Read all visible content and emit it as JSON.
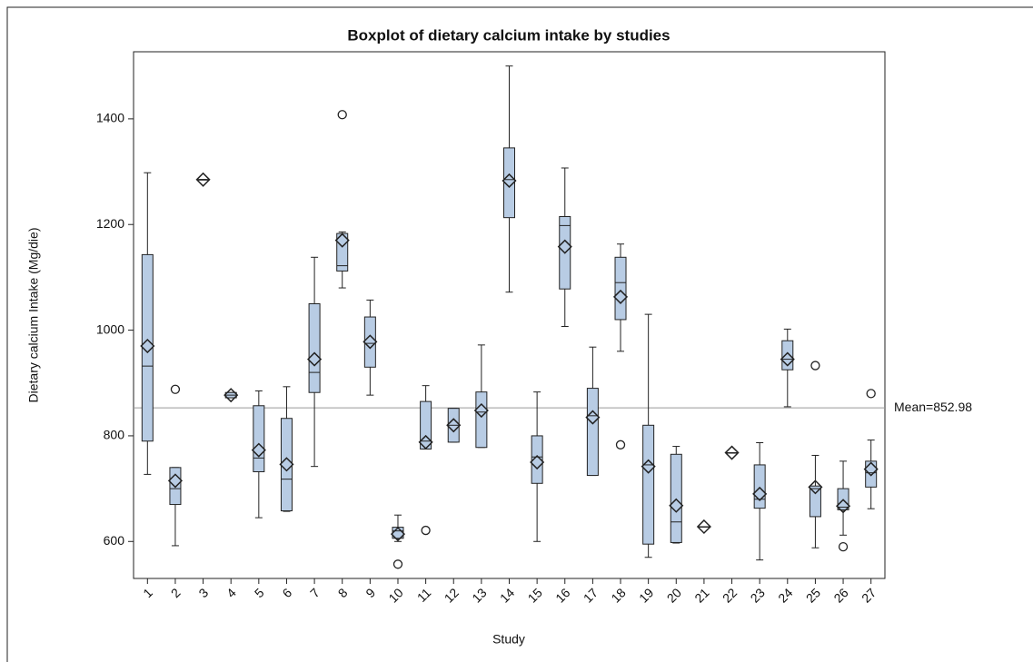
{
  "chart_data": {
    "type": "box",
    "title": "Boxplot of dietary calcium intake by studies",
    "x_label": "Study",
    "y_label": "Dietary calcium Intake (Mg/die)",
    "categories": [
      "1",
      "2",
      "3",
      "4",
      "5",
      "6",
      "7",
      "8",
      "9",
      "10",
      "11",
      "12",
      "13",
      "14",
      "15",
      "16",
      "17",
      "18",
      "19",
      "20",
      "21",
      "22",
      "23",
      "24",
      "25",
      "26",
      "27"
    ],
    "min": [
      727,
      592,
      1285,
      872,
      645,
      657,
      742,
      1080,
      877,
      600,
      775,
      788,
      778,
      1072,
      600,
      1007,
      725,
      960,
      570,
      597,
      628,
      768,
      565,
      855,
      588,
      612,
      662
    ],
    "q1": [
      790,
      670,
      1285,
      872,
      732,
      658,
      882,
      1112,
      930,
      606,
      775,
      788,
      778,
      1213,
      710,
      1078,
      725,
      1020,
      595,
      598,
      628,
      768,
      663,
      925,
      647,
      660,
      703
    ],
    "median": [
      932,
      700,
      1285,
      877,
      758,
      718,
      920,
      1122,
      975,
      620,
      790,
      820,
      845,
      1285,
      760,
      1198,
      838,
      1090,
      745,
      637,
      628,
      768,
      680,
      945,
      700,
      665,
      730
    ],
    "q3": [
      1143,
      740,
      1285,
      882,
      857,
      833,
      1050,
      1183,
      1025,
      627,
      865,
      852,
      883,
      1345,
      800,
      1215,
      890,
      1138,
      820,
      765,
      628,
      768,
      745,
      980,
      705,
      700,
      752
    ],
    "max": [
      1298,
      740,
      1285,
      882,
      885,
      893,
      1138,
      1186,
      1057,
      650,
      895,
      852,
      972,
      1500,
      883,
      1307,
      968,
      1163,
      1030,
      780,
      628,
      768,
      787,
      1002,
      763,
      752,
      792
    ],
    "mean": [
      970,
      715,
      1285,
      877,
      773,
      746,
      945,
      1170,
      978,
      614,
      788,
      820,
      848,
      1283,
      750,
      1158,
      835,
      1063,
      742,
      668,
      628,
      768,
      690,
      945,
      703,
      667,
      737
    ],
    "outliers": [
      [],
      [
        888
      ],
      [],
      [],
      [],
      [],
      [],
      [
        1408
      ],
      [],
      [
        557
      ],
      [
        621
      ],
      [],
      [],
      [],
      [],
      [],
      [],
      [
        783
      ],
      [],
      [],
      [],
      [],
      [],
      [],
      [
        933
      ],
      [
        590
      ],
      [
        880
      ]
    ],
    "color": "#b8cce4",
    "ylim": [
      530,
      1527
    ],
    "yticks": [
      600,
      800,
      1000,
      1200,
      1400
    ],
    "mean_line": {
      "value": 852.98,
      "label": "Mean=852.98"
    }
  }
}
